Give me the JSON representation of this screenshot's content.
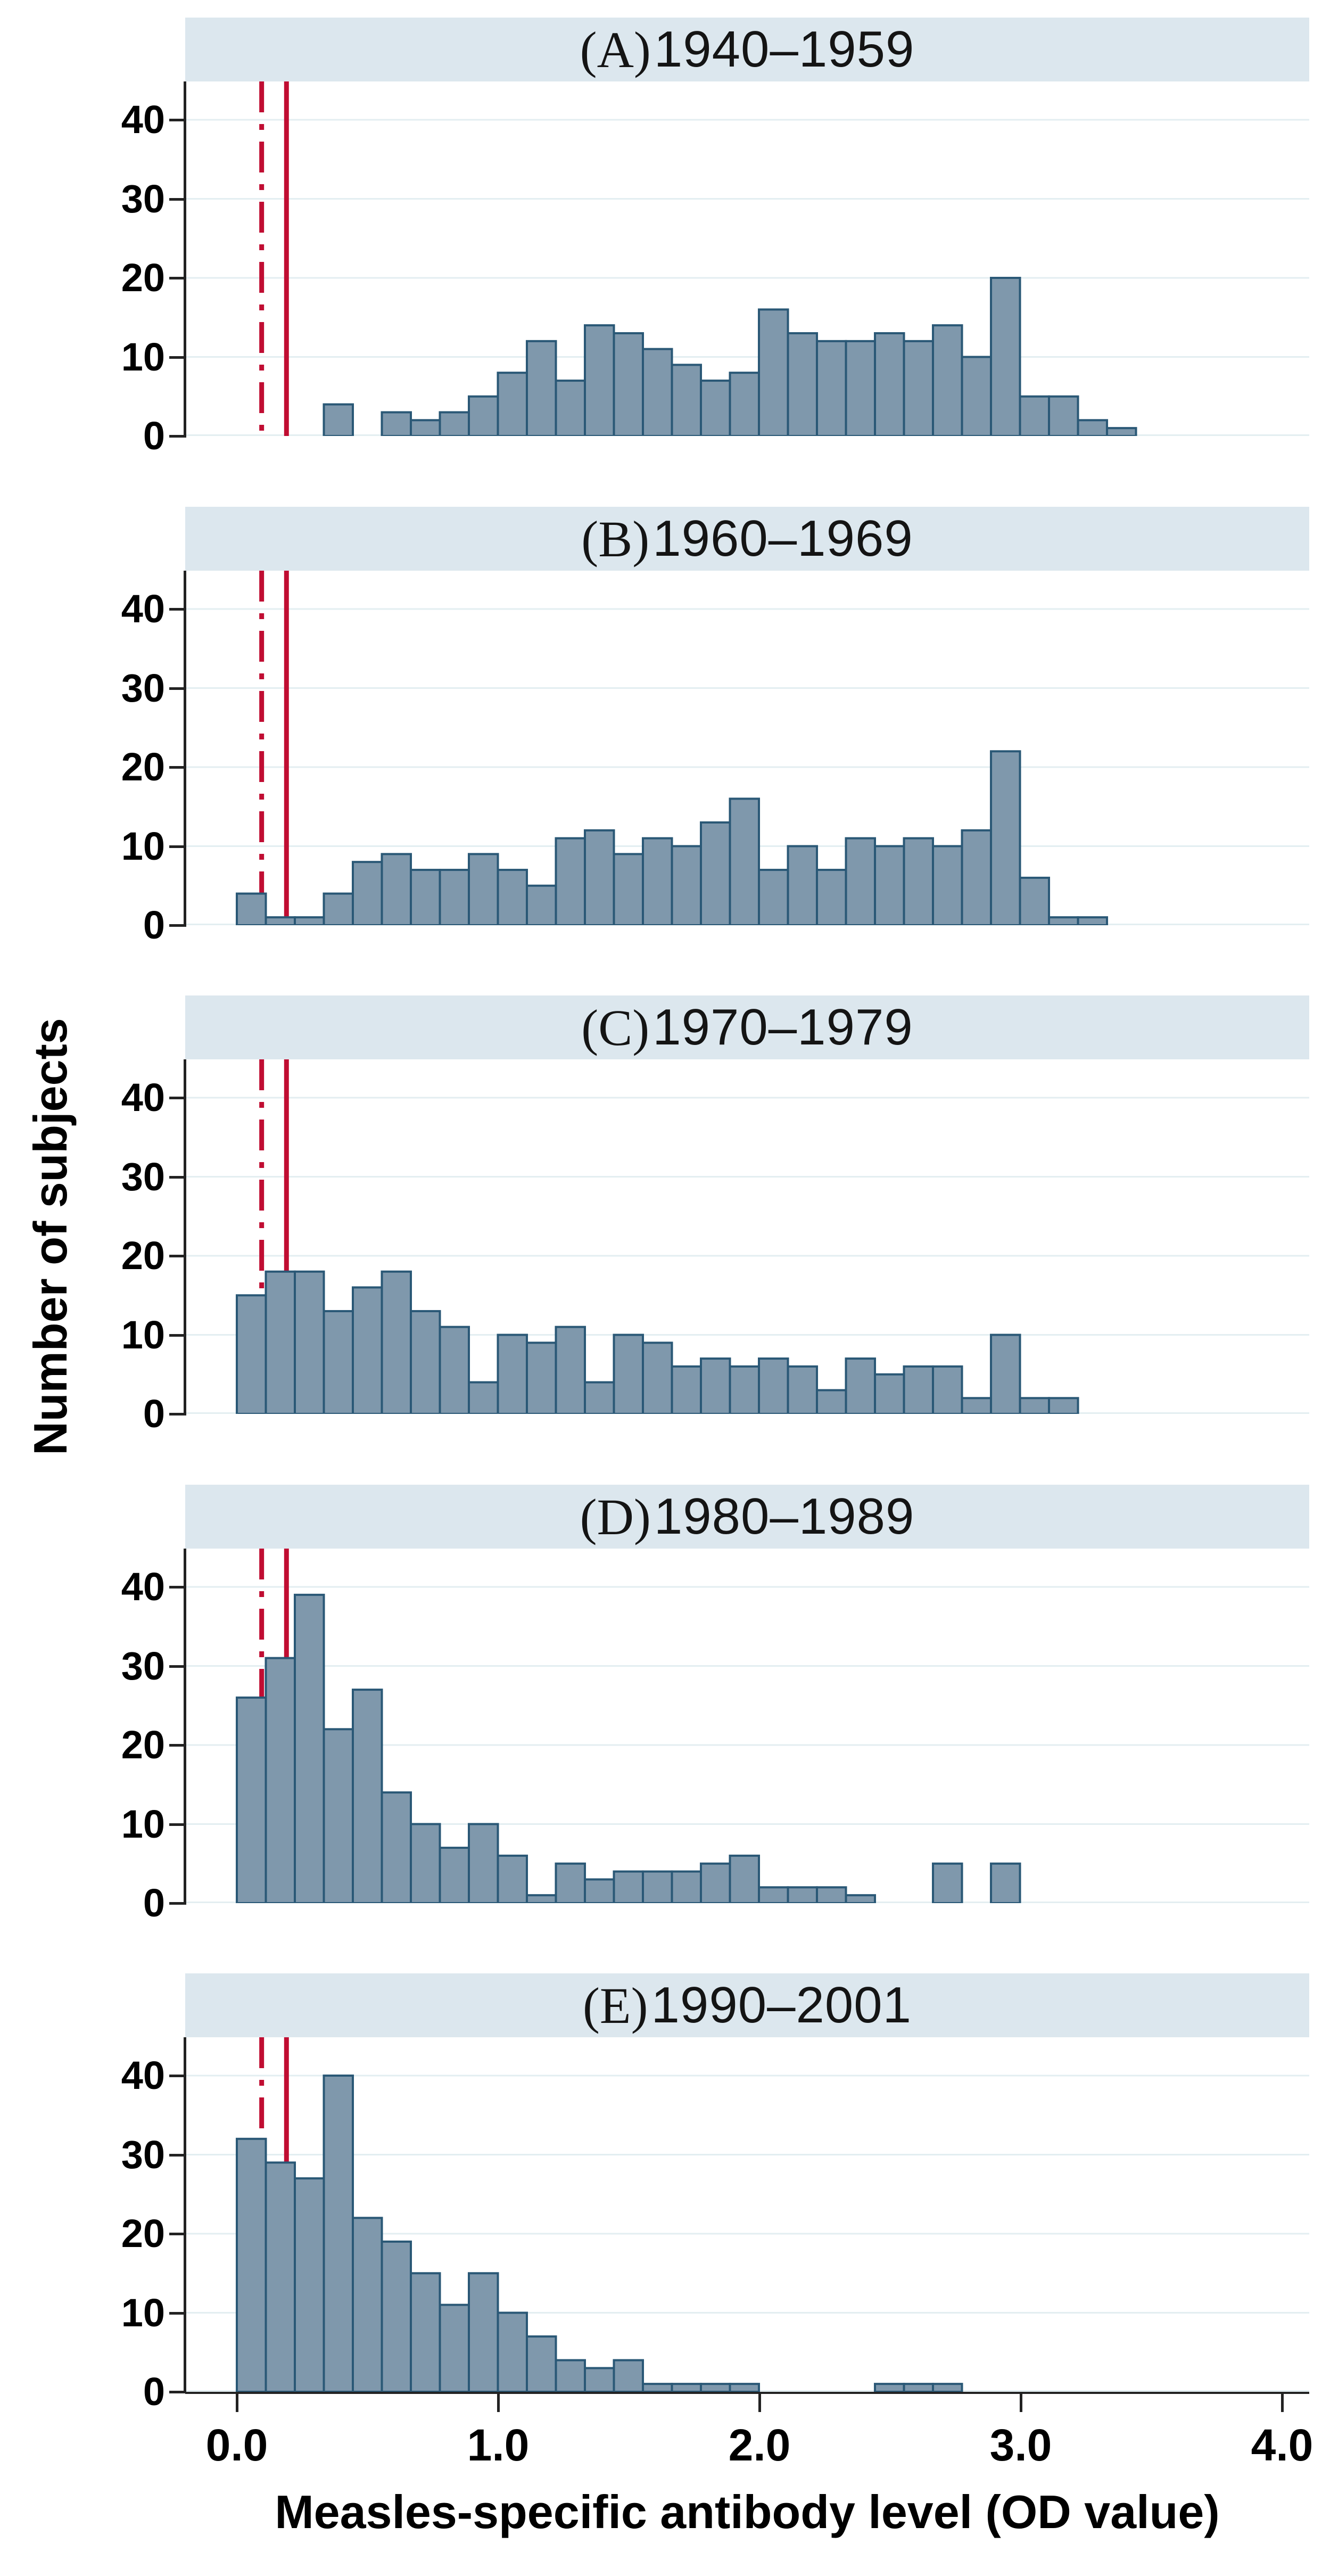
{
  "chart_data": {
    "type": "bar",
    "subtype": "histogram-panel-grid",
    "title": "",
    "xlabel": "Measles-specific antibody level (OD value)",
    "ylabel": "Number of subjects",
    "x_ticks": [
      {
        "od": 0.0,
        "label": "0.0"
      },
      {
        "od": 1.0,
        "label": "1.0"
      },
      {
        "od": 2.0,
        "label": "2.0"
      },
      {
        "od": 3.0,
        "label": "3.0"
      },
      {
        "od": 4.0,
        "label": "4.0"
      }
    ],
    "y_ticks": [
      {
        "v": 0,
        "label": "0"
      },
      {
        "v": 10,
        "label": "10"
      },
      {
        "v": 20,
        "label": "20"
      },
      {
        "v": 30,
        "label": "30"
      },
      {
        "v": 40,
        "label": "40"
      }
    ],
    "ylim": [
      0,
      44.8
    ],
    "xlim_od": [
      -0.2,
      4.1
    ],
    "grid": true,
    "legend": "none",
    "bin_width_od": 0.111,
    "cutoff_lines": [
      {
        "od": 0.095,
        "style": "dashdot",
        "meaning": "lower reference line"
      },
      {
        "od": 0.19,
        "style": "solid",
        "meaning": "upper reference line"
      }
    ],
    "panels": [
      {
        "label": "(A)",
        "cohort": "1940–1959",
        "x0": 0.333,
        "values": [
          4,
          0,
          3,
          2,
          3,
          5,
          8,
          12,
          7,
          14,
          13,
          11,
          9,
          7,
          8,
          16,
          13,
          12,
          12,
          13,
          12,
          14,
          10,
          20,
          5,
          5,
          2,
          1
        ]
      },
      {
        "label": "(B)",
        "cohort": "1960–1969",
        "x0": 0.0,
        "values": [
          4,
          1,
          1,
          4,
          8,
          9,
          7,
          7,
          9,
          7,
          5,
          11,
          12,
          9,
          11,
          10,
          13,
          16,
          7,
          10,
          7,
          11,
          10,
          11,
          10,
          12,
          22,
          6,
          1,
          1
        ]
      },
      {
        "label": "(C)",
        "cohort": "1970–1979",
        "x0": 0.0,
        "values": [
          15,
          18,
          18,
          13,
          16,
          18,
          13,
          11,
          4,
          10,
          9,
          11,
          4,
          10,
          9,
          6,
          7,
          6,
          7,
          6,
          3,
          7,
          5,
          6,
          6,
          2,
          10,
          2,
          2
        ]
      },
      {
        "label": "(D)",
        "cohort": "1980–1989",
        "x0": 0.0,
        "values": [
          26,
          31,
          39,
          22,
          27,
          14,
          10,
          7,
          10,
          6,
          1,
          5,
          3,
          4,
          4,
          4,
          5,
          6,
          2,
          2,
          2,
          1,
          0,
          0,
          5,
          0,
          5
        ]
      },
      {
        "label": "(E)",
        "cohort": "1990–2001",
        "x0": 0.0,
        "values": [
          32,
          29,
          27,
          40,
          22,
          19,
          15,
          11,
          15,
          10,
          7,
          4,
          3,
          4,
          1,
          1,
          1,
          1,
          0,
          0,
          0,
          0,
          1,
          1,
          1
        ]
      }
    ],
    "colors": {
      "bar_fill": "#7f98ac",
      "bar_stroke": "#2a5876",
      "band_bg": "#dce7ee",
      "grid_line": "#e3eef1",
      "axis": "#222222",
      "cutoff_red": "#c00d32",
      "text": "#000000"
    }
  }
}
